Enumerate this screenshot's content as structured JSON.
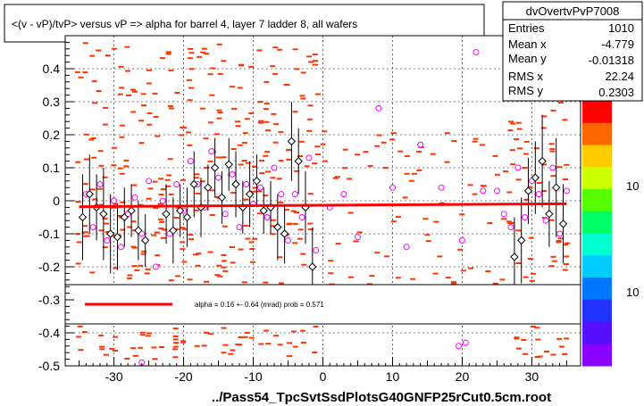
{
  "title": "<(v - vP)/tvP> versus   vP => alpha for barrel 4, layer 7 ladder 8, all wafers",
  "footer": "../Pass54_TpcSvtSsdPlotsG40GNFP25rCut0.5cm.root",
  "stats": {
    "name": "dvOvertvPvP7008",
    "rows": [
      {
        "label": "Entries",
        "value": "1010"
      },
      {
        "label": "Mean x",
        "value": "-4.779"
      },
      {
        "label": "Mean y",
        "value": "-0.01318"
      },
      {
        "label": "RMS x",
        "value": "22.24"
      },
      {
        "label": "RMS y",
        "value": "0.2303"
      }
    ]
  },
  "fit_legend": {
    "text": "alpha =    0.16 +-  0.64 (mrad) prob = 0.571",
    "color": "#ff0000"
  },
  "palette_labels": [
    "10",
    "10"
  ],
  "colors": {
    "histogram": "#ff3300",
    "profile_black": "#000000",
    "profile_magenta": "#ff00ff",
    "fit": "#ff0000"
  },
  "chart_data": {
    "type": "scatter",
    "title": "<(v - vP)/tvP> versus   vP => alpha for barrel 4, layer 7 ladder 8, all wafers",
    "xlim": [
      -37,
      37
    ],
    "ylim": [
      -0.5,
      0.5
    ],
    "xticks": [
      -30,
      -20,
      -10,
      0,
      10,
      20,
      30
    ],
    "yticks": [
      -0.5,
      -0.4,
      -0.3,
      -0.2,
      -0.1,
      0,
      0.1,
      0.2,
      0.3,
      0.4
    ],
    "ytick_labels": [
      "-0.5",
      "-0.4",
      "-0.3",
      "-0.2",
      "-0.1",
      "0",
      "0.1",
      "0.2",
      "0.3",
      "0.4"
    ],
    "grid": true,
    "fit_line": {
      "x": [
        -35,
        35
      ],
      "y": [
        -0.018,
        -0.009
      ]
    },
    "series": [
      {
        "marker": "open-diamond-black",
        "points": [
          {
            "x": -34.5,
            "y": -0.05,
            "e": 0.13
          },
          {
            "x": -33.5,
            "y": 0.02,
            "e": 0.12
          },
          {
            "x": -32.5,
            "y": -0.02,
            "e": 0.1
          },
          {
            "x": -31.5,
            "y": -0.04,
            "e": 0.14
          },
          {
            "x": -30.5,
            "y": -0.1,
            "e": 0.12
          },
          {
            "x": -29.5,
            "y": -0.11,
            "e": 0.1
          },
          {
            "x": -28.5,
            "y": -0.05,
            "e": 0.09
          },
          {
            "x": -27.5,
            "y": -0.03,
            "e": 0.08
          },
          {
            "x": -26.5,
            "y": -0.09,
            "e": 0.09
          },
          {
            "x": -25.5,
            "y": -0.12,
            "e": 0.08
          },
          {
            "x": -22.5,
            "y": -0.04,
            "e": 0.09
          },
          {
            "x": -21.5,
            "y": -0.09,
            "e": 0.1
          },
          {
            "x": -20.5,
            "y": -0.03,
            "e": 0.08
          },
          {
            "x": -19.5,
            "y": -0.05,
            "e": 0.09
          },
          {
            "x": -18.5,
            "y": 0.05,
            "e": 0.1
          },
          {
            "x": -17.5,
            "y": -0.02,
            "e": 0.09
          },
          {
            "x": -16.5,
            "y": 0.04,
            "e": 0.07
          },
          {
            "x": -15.5,
            "y": 0.1,
            "e": 0.09
          },
          {
            "x": -14.5,
            "y": 0.01,
            "e": 0.08
          },
          {
            "x": -13.5,
            "y": 0.11,
            "e": 0.08
          },
          {
            "x": -12.5,
            "y": 0.05,
            "e": 0.1
          },
          {
            "x": -11.5,
            "y": -0.02,
            "e": 0.08
          },
          {
            "x": -10.5,
            "y": 0.02,
            "e": 0.1
          },
          {
            "x": -9.5,
            "y": 0.06,
            "e": 0.08
          },
          {
            "x": -8.5,
            "y": -0.03,
            "e": 0.07
          },
          {
            "x": -7.5,
            "y": -0.02,
            "e": 0.08
          },
          {
            "x": -6.5,
            "y": -0.08,
            "e": 0.1
          },
          {
            "x": -5.5,
            "y": -0.1,
            "e": 0.09
          },
          {
            "x": -4.5,
            "y": 0.18,
            "e": 0.12
          },
          {
            "x": -3.5,
            "y": 0.12,
            "e": 0.1
          },
          {
            "x": -2.5,
            "y": -0.02,
            "e": 0.11
          },
          {
            "x": -1.5,
            "y": -0.2,
            "e": 0.12
          },
          {
            "x": 27.5,
            "y": -0.17,
            "e": 0.12
          },
          {
            "x": 28.5,
            "y": -0.12,
            "e": 0.13
          },
          {
            "x": 29.5,
            "y": 0.03,
            "e": 0.1
          },
          {
            "x": 30.5,
            "y": 0.07,
            "e": 0.11
          },
          {
            "x": 31.5,
            "y": 0.12,
            "e": 0.14
          },
          {
            "x": 32.5,
            "y": -0.04,
            "e": 0.1
          },
          {
            "x": 33.5,
            "y": 0.04,
            "e": 0.15
          },
          {
            "x": 34.5,
            "y": -0.07,
            "e": 0.12
          }
        ]
      },
      {
        "marker": "open-circle-magenta",
        "points": [
          {
            "x": -34,
            "y": 0.02
          },
          {
            "x": -33,
            "y": -0.08
          },
          {
            "x": -32,
            "y": 0.05
          },
          {
            "x": -31,
            "y": -0.12
          },
          {
            "x": -30,
            "y": 0.0
          },
          {
            "x": -29,
            "y": -0.14
          },
          {
            "x": -28,
            "y": -0.04
          },
          {
            "x": -27,
            "y": 0.01
          },
          {
            "x": -26,
            "y": -0.1
          },
          {
            "x": -25,
            "y": 0.06
          },
          {
            "x": -24,
            "y": -0.2
          },
          {
            "x": -23,
            "y": 0.0
          },
          {
            "x": -22,
            "y": -0.1
          },
          {
            "x": -21,
            "y": 0.05
          },
          {
            "x": -20,
            "y": -0.03
          },
          {
            "x": -19,
            "y": 0.12
          },
          {
            "x": -18,
            "y": 0.05
          },
          {
            "x": -17,
            "y": -0.02
          },
          {
            "x": -16,
            "y": 0.15
          },
          {
            "x": -15,
            "y": 0.07
          },
          {
            "x": -14,
            "y": -0.04
          },
          {
            "x": -13,
            "y": 0.08
          },
          {
            "x": -12,
            "y": -0.08
          },
          {
            "x": -11,
            "y": 0.05
          },
          {
            "x": -10,
            "y": -0.01
          },
          {
            "x": -9,
            "y": 0.04
          },
          {
            "x": -8,
            "y": -0.05
          },
          {
            "x": -7,
            "y": 0.1
          },
          {
            "x": -6,
            "y": 0.02
          },
          {
            "x": -5,
            "y": -0.12
          },
          {
            "x": -4,
            "y": 0.02
          },
          {
            "x": -3,
            "y": -0.05
          },
          {
            "x": -2,
            "y": 0.13
          },
          {
            "x": -1,
            "y": -0.15
          },
          {
            "x": 1,
            "y": -0.02
          },
          {
            "x": 3,
            "y": 0.02
          },
          {
            "x": 5,
            "y": -0.11
          },
          {
            "x": 8,
            "y": 0.28
          },
          {
            "x": 10,
            "y": 0.04
          },
          {
            "x": 12,
            "y": -0.14
          },
          {
            "x": 14,
            "y": 0.17
          },
          {
            "x": 17,
            "y": 0.04
          },
          {
            "x": 20,
            "y": -0.12
          },
          {
            "x": 22,
            "y": 0.45
          },
          {
            "x": 23,
            "y": 0.03
          },
          {
            "x": 25,
            "y": 0.03
          },
          {
            "x": 26,
            "y": -0.04
          },
          {
            "x": 27,
            "y": -0.08
          },
          {
            "x": 28,
            "y": 0.1
          },
          {
            "x": 29,
            "y": -0.05
          },
          {
            "x": 30,
            "y": 0.06
          },
          {
            "x": 31,
            "y": 0.02
          },
          {
            "x": 32,
            "y": -0.06
          },
          {
            "x": 33,
            "y": 0.1
          },
          {
            "x": 34,
            "y": -0.1
          },
          {
            "x": 35,
            "y": 0.03
          },
          {
            "x": 19.5,
            "y": -0.44
          },
          {
            "x": 20.5,
            "y": -0.43
          },
          {
            "x": -26,
            "y": -0.49
          }
        ]
      }
    ]
  }
}
